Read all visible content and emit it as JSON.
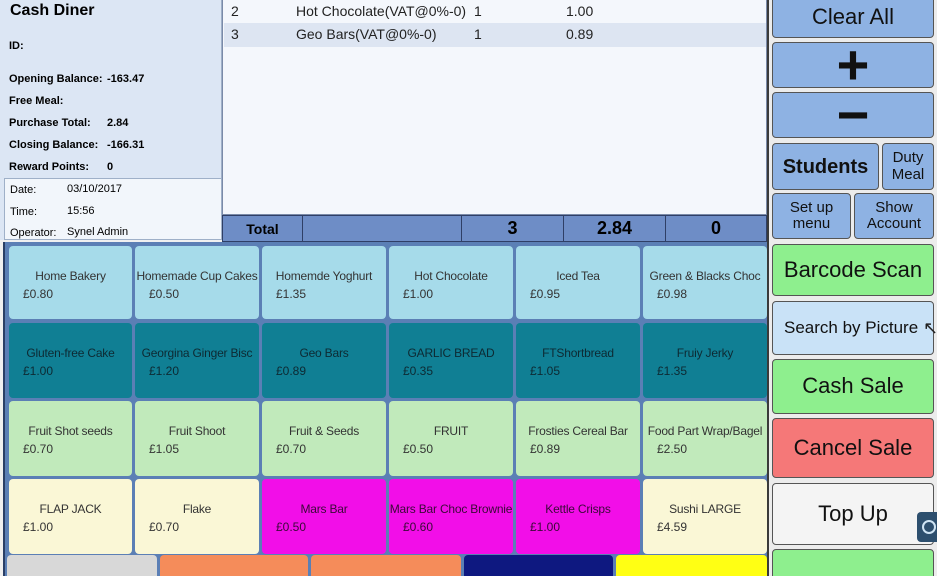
{
  "customer": {
    "name": "Cash Diner",
    "id_label": "ID:",
    "opening_balance_label": "Opening Balance:",
    "opening_balance": "-163.47",
    "free_meal_label": "Free Meal:",
    "purchase_total_label": "Purchase Total:",
    "purchase_total": "2.84",
    "closing_balance_label": "Closing Balance:",
    "closing_balance": "-166.31",
    "reward_points_label": "Reward Points:",
    "reward_points": "0",
    "date_label": "Date:",
    "date": "03/10/2017",
    "time_label": "Time:",
    "time": "15:56",
    "operator_label": "Operator:",
    "operator": "Synel Admin"
  },
  "order": {
    "rows": [
      {
        "no": "2",
        "name": "Hot Chocolate(VAT@0%-0)",
        "qty": "1",
        "price": "1.00"
      },
      {
        "no": "3",
        "name": "Geo Bars(VAT@0%-0)",
        "qty": "1",
        "price": "0.89"
      }
    ]
  },
  "totals": {
    "label": "Total",
    "items": "3",
    "amount": "2.84",
    "extra": "0"
  },
  "products": [
    {
      "name": "Home Bakery",
      "price": "£0.80"
    },
    {
      "name": "Homemade Cup Cakes",
      "price": "£0.50"
    },
    {
      "name": "Homemde Yoghurt",
      "price": "£1.35"
    },
    {
      "name": "Hot Chocolate",
      "price": "£1.00"
    },
    {
      "name": "Iced Tea",
      "price": "£0.95"
    },
    {
      "name": "Green & Blacks Choc",
      "price": "£0.98"
    },
    {
      "name": "Gluten-free Cake",
      "price": "£1.00"
    },
    {
      "name": "Georgina Ginger Bisc",
      "price": "£1.20"
    },
    {
      "name": "Geo Bars",
      "price": "£0.89"
    },
    {
      "name": "GARLIC BREAD",
      "price": "£0.35"
    },
    {
      "name": "FTShortbread",
      "price": "£1.05"
    },
    {
      "name": "Fruiy Jerky",
      "price": "£1.35"
    },
    {
      "name": "Fruit Shot seeds",
      "price": "£0.70"
    },
    {
      "name": "Fruit Shoot",
      "price": "£1.05"
    },
    {
      "name": "Fruit & Seeds",
      "price": "£0.70"
    },
    {
      "name": "FRUIT",
      "price": "£0.50"
    },
    {
      "name": "Frosties Cereal Bar",
      "price": "£0.89"
    },
    {
      "name": "Food Part Wrap/Bagel",
      "price": "£2.50"
    },
    {
      "name": "FLAP JACK",
      "price": "£1.00"
    },
    {
      "name": "Flake",
      "price": "£0.70"
    },
    {
      "name": "Mars Bar",
      "price": "£0.50"
    },
    {
      "name": "Mars Bar Choc Brownie",
      "price": "£0.60"
    },
    {
      "name": "Kettle Crisps",
      "price": "£1.00"
    },
    {
      "name": "Sushi  LARGE",
      "price": "£4.59"
    }
  ],
  "actions": {
    "clear_all": "Clear All",
    "plus": "+",
    "minus": "−",
    "students": "Students",
    "duty_meal": "Duty Meal",
    "setup_menu": "Set up menu",
    "show_account": "Show Account",
    "barcode_scan": "Barcode Scan",
    "search_by_picture": "Search by Picture",
    "cash_sale": "Cash Sale",
    "cancel_sale": "Cancel Sale",
    "top_up": "Top Up"
  },
  "colors": {
    "product_blue": "#a6dbea",
    "product_teal": "#107f94",
    "product_green": "#c1eabb",
    "product_cream": "#faf7d6",
    "product_magenta": "#f20ee8",
    "action_blue": "#8eb2e3",
    "action_green": "#8eef8e",
    "action_red": "#f57878"
  }
}
